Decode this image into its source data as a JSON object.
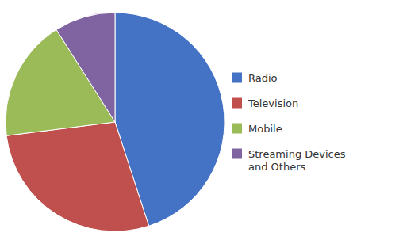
{
  "chart_data": {
    "type": "pie",
    "categories": [
      "Radio",
      "Television",
      "Mobile",
      "Streaming Devices\nand Others"
    ],
    "values": [
      45,
      28,
      18,
      9
    ],
    "colors": [
      "#4472C4",
      "#C0504D",
      "#9BBB59",
      "#8064A2"
    ],
    "legend": "right"
  }
}
